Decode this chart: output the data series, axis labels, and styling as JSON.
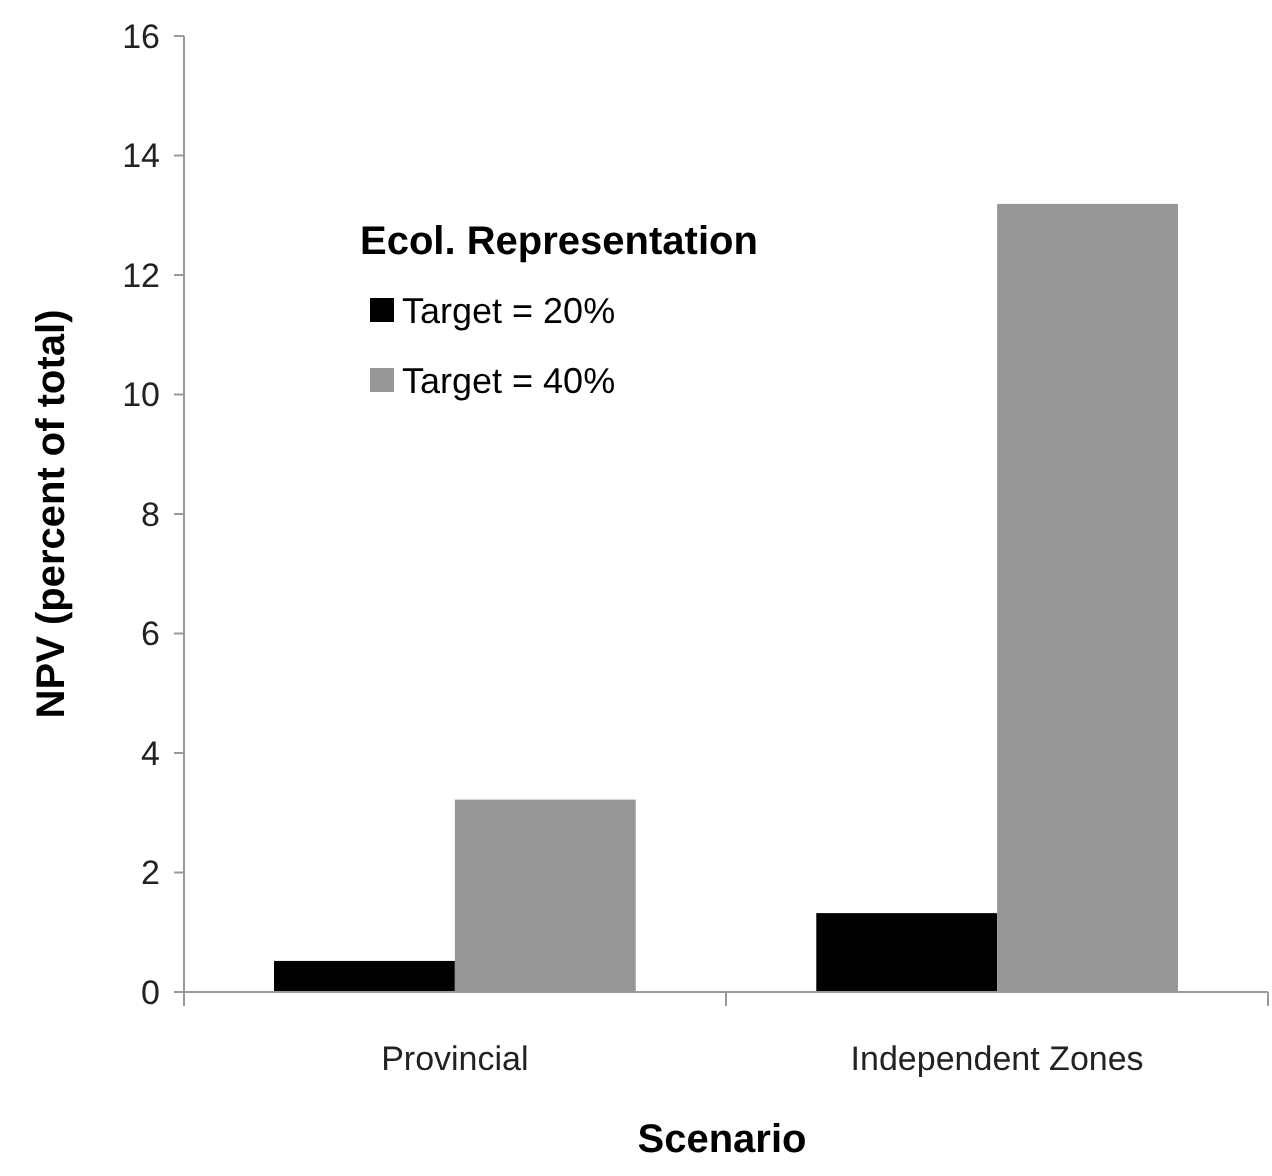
{
  "chart_data": {
    "type": "bar",
    "xlabel": "Scenario",
    "ylabel": "NPV (percent of total)",
    "legend_title": "Ecol. Representation",
    "categories": [
      "Provincial",
      "Independent Zones"
    ],
    "series": [
      {
        "name": "Target = 20%",
        "color": "#000000",
        "values": [
          0.52,
          1.32
        ]
      },
      {
        "name": "Target = 40%",
        "color": "#969696",
        "values": [
          3.22,
          13.19
        ]
      }
    ],
    "ylim": [
      0,
      16
    ],
    "yticks": [
      0,
      2,
      4,
      6,
      8,
      10,
      12,
      14,
      16
    ],
    "grid": false,
    "legend": "top left"
  }
}
